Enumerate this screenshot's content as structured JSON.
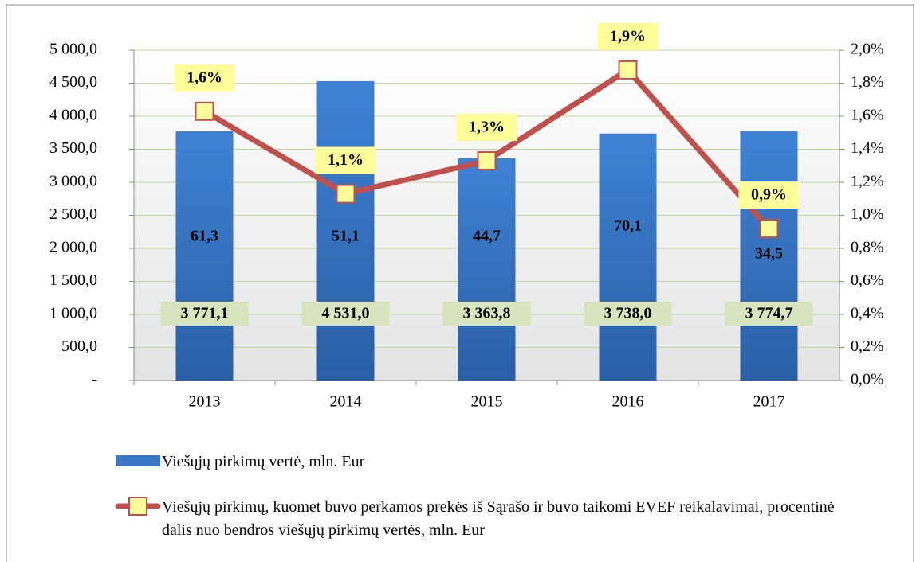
{
  "chart_data": {
    "type": "bar",
    "categories": [
      "2013",
      "2014",
      "2015",
      "2016",
      "2017"
    ],
    "series": [
      {
        "name": "Viešųjų pirkimų vertė, mln. Eur",
        "color": "#3a78c6",
        "values": [
          3771.1,
          4531.0,
          3363.8,
          3738.0,
          3774.7
        ],
        "value_labels": [
          "3 771,1",
          "4 531,0",
          "3 363,8",
          "3 738,0",
          "3 774,7"
        ]
      },
      {
        "name": "Viešųjų pirkimų, kuomet buvo perkamos prekės iš Sąrašo ir buvo taikomi EVEF reikalavimai, procentinė dalis nuo bendros viešųjų pirkimų vertės, mln. Eur",
        "type": "line",
        "axis": "y2",
        "color": "#c0504d",
        "marker_color": "#ffff99",
        "values": [
          1.63,
          1.13,
          1.33,
          1.88,
          0.92
        ],
        "value_labels": [
          "1,6%",
          "1,1%",
          "1,3%",
          "1,9%",
          "0,9%"
        ]
      }
    ],
    "annotations": [
      "61,3",
      "51,1",
      "44,7",
      "70,1",
      "34,5"
    ],
    "ylim": [
      0,
      5000
    ],
    "yticks": [
      {
        "value": 0,
        "label": "-"
      },
      {
        "value": 500,
        "label": "500,0"
      },
      {
        "value": 1000,
        "label": "1 000,0"
      },
      {
        "value": 1500,
        "label": "1 500,0"
      },
      {
        "value": 2000,
        "label": "2 000,0"
      },
      {
        "value": 2500,
        "label": "2 500,0"
      },
      {
        "value": 3000,
        "label": "3 000,0"
      },
      {
        "value": 3500,
        "label": "3 500,0"
      },
      {
        "value": 4000,
        "label": "4 000,0"
      },
      {
        "value": 4500,
        "label": "4 500,0"
      },
      {
        "value": 5000,
        "label": "5 000,0"
      }
    ],
    "y2lim": [
      0,
      2.0
    ],
    "y2ticks": [
      {
        "value": 0,
        "label": "0,0%"
      },
      {
        "value": 0.2,
        "label": "0,2%"
      },
      {
        "value": 0.4,
        "label": "0,4%"
      },
      {
        "value": 0.6,
        "label": "0,6%"
      },
      {
        "value": 0.8,
        "label": "0,8%"
      },
      {
        "value": 1.0,
        "label": "1,0%"
      },
      {
        "value": 1.2,
        "label": "1,2%"
      },
      {
        "value": 1.4,
        "label": "1,4%"
      },
      {
        "value": 1.6,
        "label": "1,6%"
      },
      {
        "value": 1.8,
        "label": "1,8%"
      },
      {
        "value": 2.0,
        "label": "2,0%"
      }
    ],
    "grid": true,
    "legend": "bottom"
  }
}
